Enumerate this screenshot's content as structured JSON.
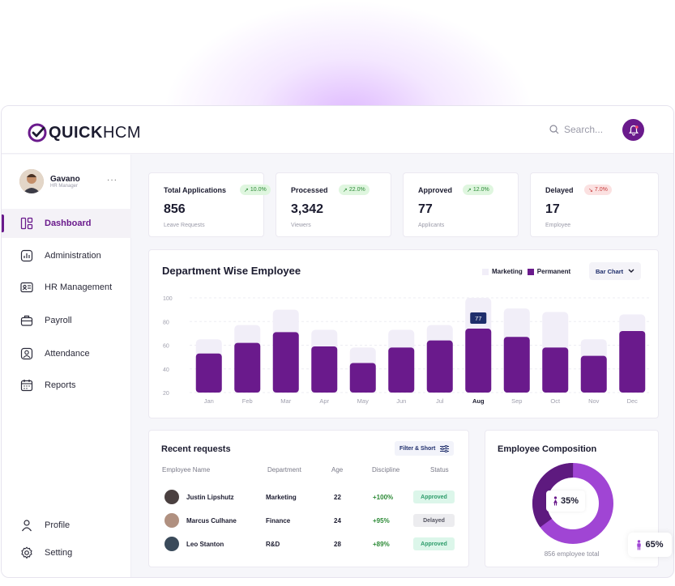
{
  "brand": {
    "name_bold": "QUICK",
    "name_light": "HCM"
  },
  "search": {
    "placeholder": "Search..."
  },
  "user": {
    "name": "Gavano",
    "role": "HR Manager"
  },
  "nav": [
    {
      "label": "Dashboard",
      "icon": "dashboard-icon",
      "active": true
    },
    {
      "label": "Administration",
      "icon": "administration-icon"
    },
    {
      "label": "HR Management",
      "icon": "id-card-icon"
    },
    {
      "label": "Payroll",
      "icon": "briefcase-icon"
    },
    {
      "label": "Attendance",
      "icon": "user-square-icon"
    },
    {
      "label": "Reports",
      "icon": "calendar-icon"
    }
  ],
  "nav_bottom": [
    {
      "label": "Profile",
      "icon": "profile-icon"
    },
    {
      "label": "Setting",
      "icon": "settings-icon"
    }
  ],
  "stats": [
    {
      "title": "Total Applications",
      "badge": "10.0%",
      "trend": "up",
      "value": "856",
      "sub": "Leave Requests"
    },
    {
      "title": "Processed",
      "badge": "22.0%",
      "trend": "up",
      "value": "3,342",
      "sub": "Viewers"
    },
    {
      "title": "Approved",
      "badge": "12.0%",
      "trend": "up",
      "value": "77",
      "sub": "Applicants"
    },
    {
      "title": "Delayed",
      "badge": "7.0%",
      "trend": "down",
      "value": "17",
      "sub": "Employee"
    }
  ],
  "dept_chart": {
    "title": "Department Wise Employee",
    "legend_marketing": "Marketing",
    "legend_permanent": "Permanent",
    "chart_type_label": "Bar Chart",
    "tooltip": "77"
  },
  "chart_data": {
    "type": "bar",
    "categories": [
      "Jan",
      "Feb",
      "Mar",
      "Apr",
      "May",
      "Jun",
      "Jul",
      "Aug",
      "Sep",
      "Oct",
      "Nov",
      "Dec"
    ],
    "series": [
      {
        "name": "Marketing",
        "values": [
          65,
          77,
          90,
          73,
          58,
          73,
          77,
          100,
          91,
          88,
          65,
          86
        ]
      },
      {
        "name": "Permanent",
        "values": [
          53,
          62,
          71,
          59,
          45,
          58,
          64,
          74,
          67,
          58,
          51,
          72
        ]
      }
    ],
    "highlight": "Aug",
    "yticks": [
      20,
      40,
      60,
      80,
      100
    ],
    "ylim": [
      20,
      100
    ],
    "grid": true,
    "colors": {
      "Marketing": "#f1eef8",
      "Permanent": "#6a1a8c"
    }
  },
  "requests": {
    "title": "Recent requests",
    "filter_label": "Filter & Short",
    "headers": [
      "Employee Name",
      "Department",
      "Age",
      "Discipline",
      "Status"
    ],
    "rows": [
      {
        "name": "Justin Lipshutz",
        "dept": "Marketing",
        "age": "22",
        "disc": "+100%",
        "status": "Approved"
      },
      {
        "name": "Marcus Culhane",
        "dept": "Finance",
        "age": "24",
        "disc": "+95%",
        "status": "Delayed"
      },
      {
        "name": "Leo Stanton",
        "dept": "R&D",
        "age": "28",
        "disc": "+89%",
        "status": "Approved"
      }
    ]
  },
  "composition": {
    "title": "Employee Composition",
    "female_pct": "35%",
    "male_pct": "65%",
    "female_value": 35,
    "total": "856 employee total",
    "colors": {
      "female": "#5e1a7f",
      "male": "#a045d4"
    }
  }
}
